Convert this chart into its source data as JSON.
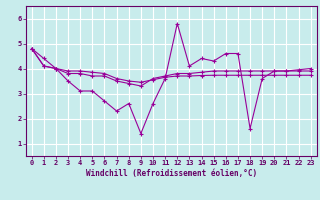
{
  "title": "",
  "xlabel": "Windchill (Refroidissement éolien,°C)",
  "ylabel": "",
  "background_color": "#c8ecec",
  "line_color": "#990099",
  "grid_color": "#ffffff",
  "xlim": [
    -0.5,
    23.5
  ],
  "ylim": [
    0.5,
    6.5
  ],
  "yticks": [
    1,
    2,
    3,
    4,
    5,
    6
  ],
  "xticks": [
    0,
    1,
    2,
    3,
    4,
    5,
    6,
    7,
    8,
    9,
    10,
    11,
    12,
    13,
    14,
    15,
    16,
    17,
    18,
    19,
    20,
    21,
    22,
    23
  ],
  "series": [
    [
      4.8,
      4.4,
      4.0,
      3.5,
      3.1,
      3.1,
      2.7,
      2.3,
      2.6,
      1.4,
      2.6,
      3.6,
      5.8,
      4.1,
      4.4,
      4.3,
      4.6,
      4.6,
      1.6,
      3.6,
      3.9,
      3.9,
      3.95,
      4.0
    ],
    [
      4.8,
      4.1,
      4.0,
      3.8,
      3.8,
      3.7,
      3.7,
      3.5,
      3.4,
      3.3,
      3.6,
      3.7,
      3.8,
      3.8,
      3.85,
      3.9,
      3.9,
      3.9,
      3.9,
      3.9,
      3.9,
      3.9,
      3.9,
      3.9
    ],
    [
      4.8,
      4.1,
      4.0,
      3.9,
      3.9,
      3.85,
      3.8,
      3.6,
      3.5,
      3.45,
      3.55,
      3.65,
      3.7,
      3.7,
      3.72,
      3.73,
      3.73,
      3.73,
      3.73,
      3.73,
      3.73,
      3.73,
      3.73,
      3.73
    ]
  ]
}
